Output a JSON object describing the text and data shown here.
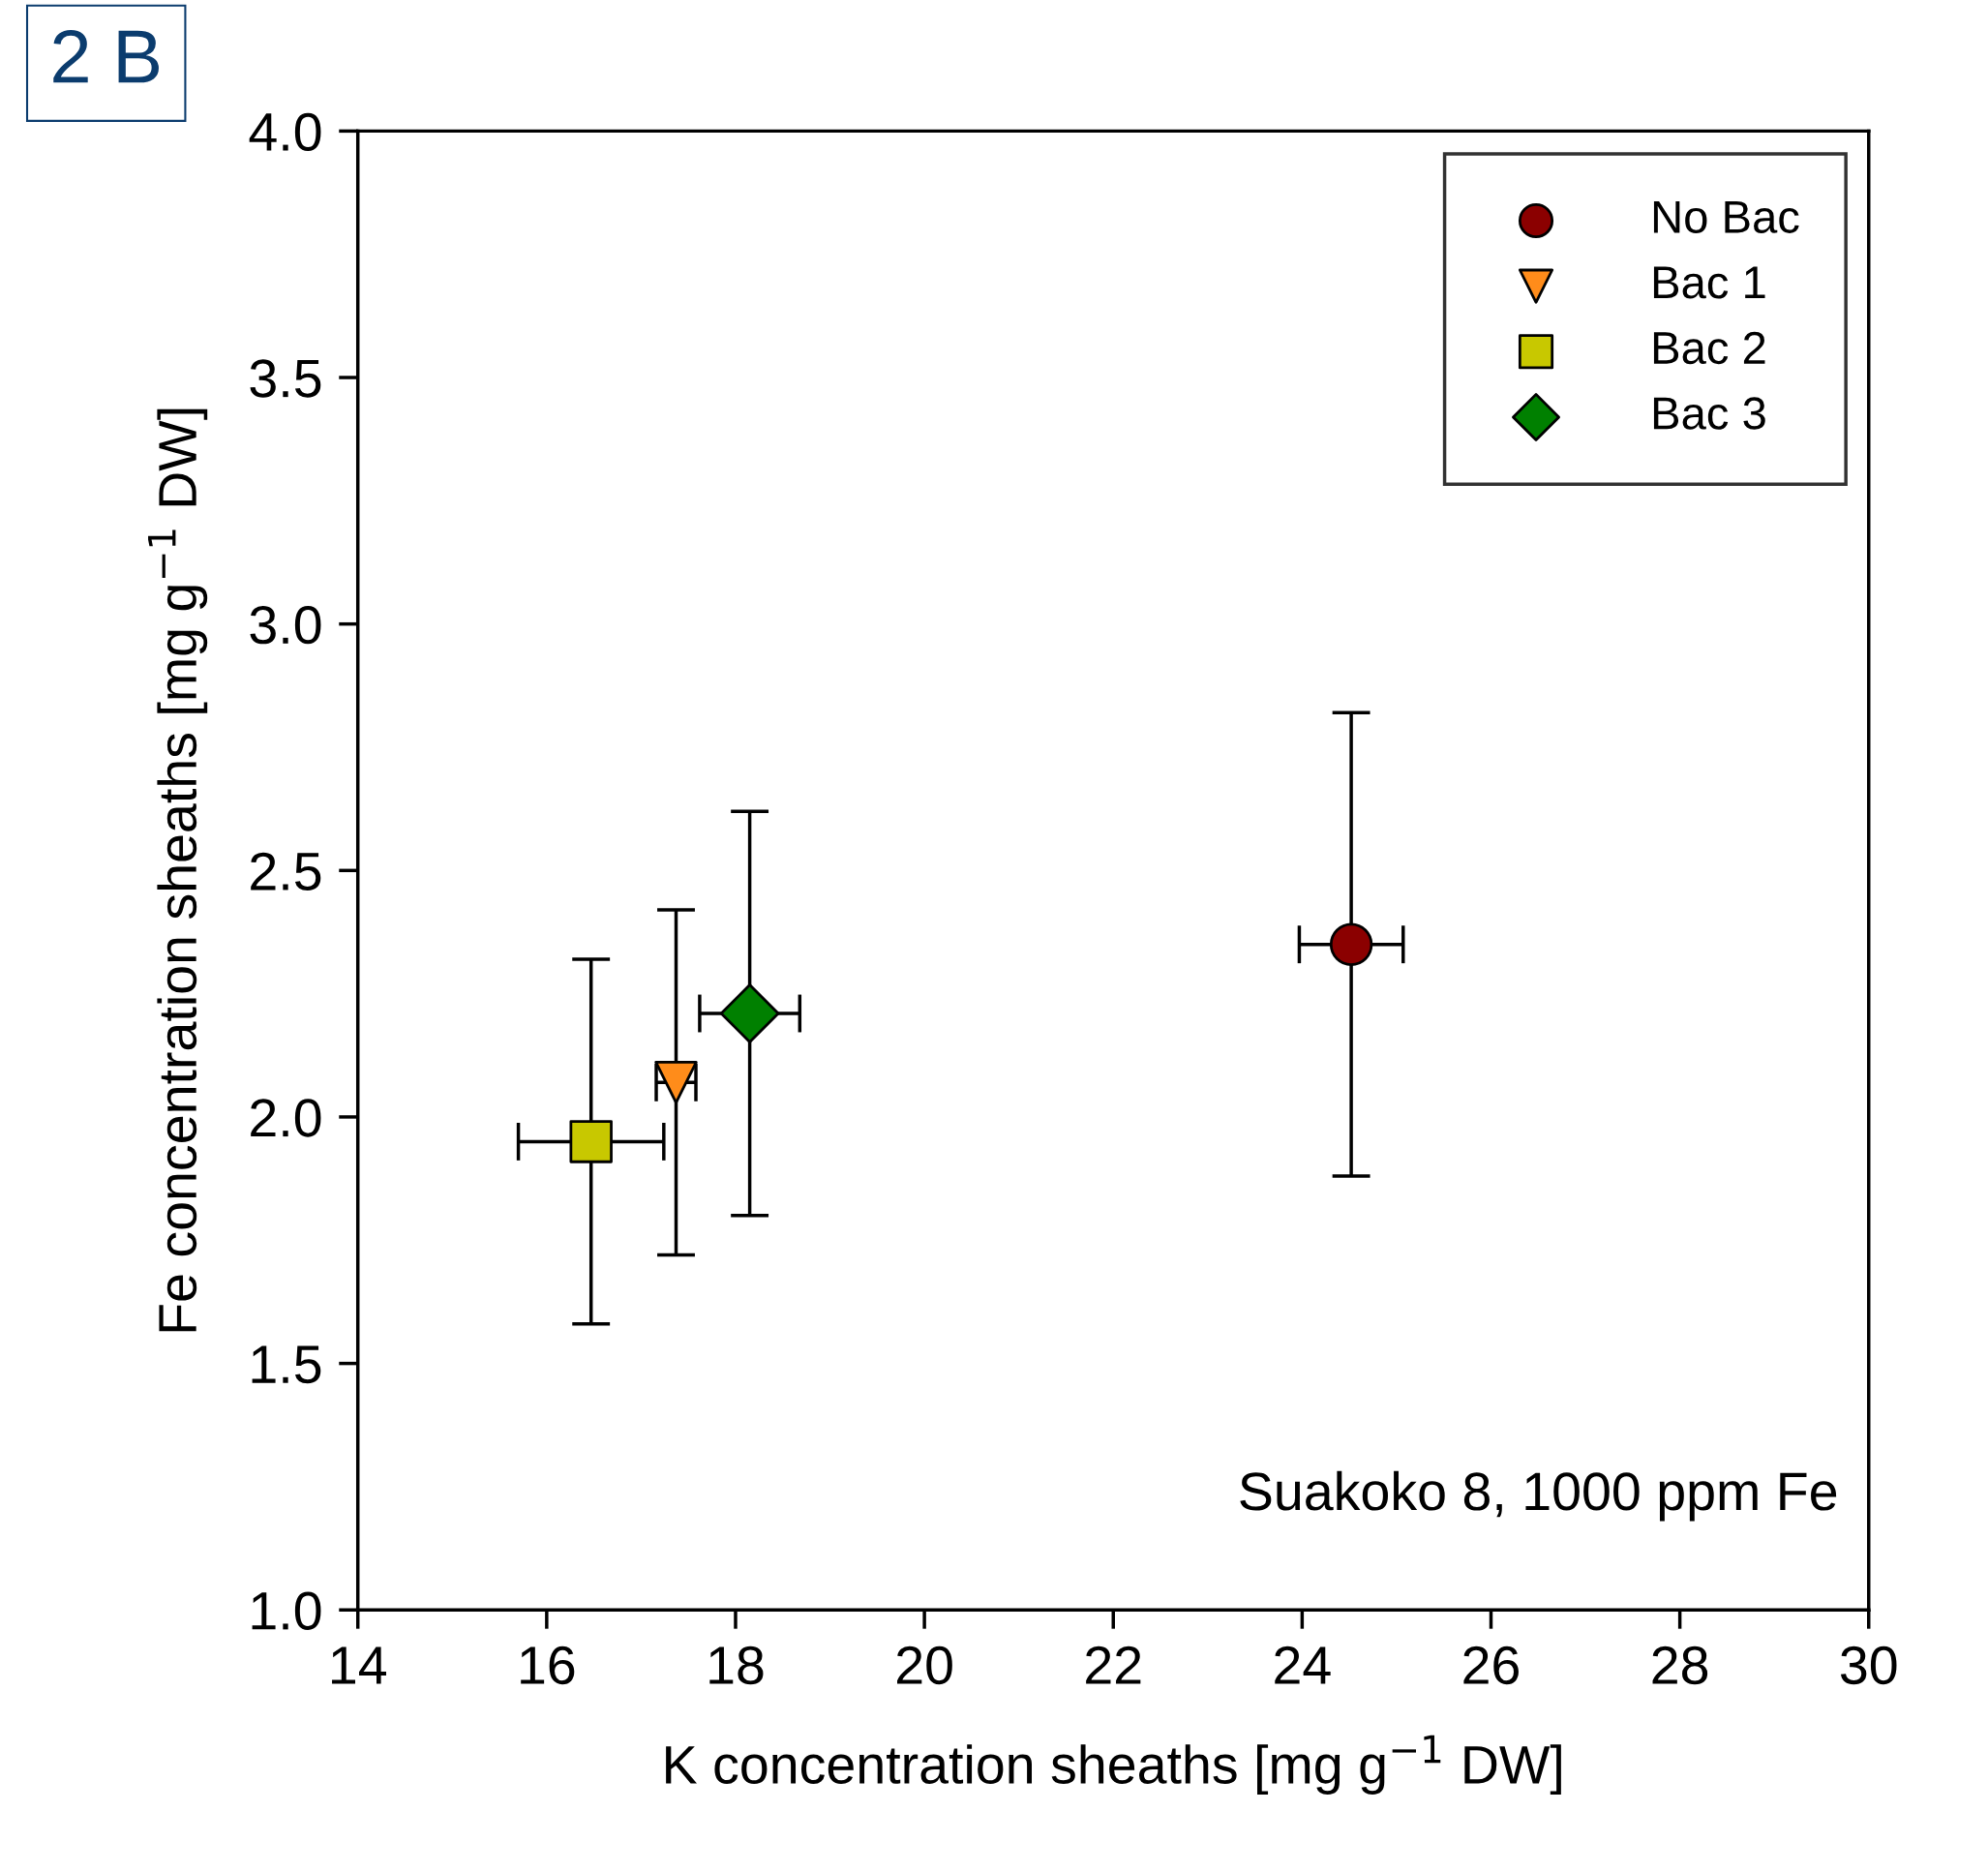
{
  "chart_data": {
    "type": "scatter",
    "xlabel": "K concentration sheaths [mg g$^{−1}$ DW]",
    "ylabel": "Fe concentration sheaths [mg g$^{−1}$ DW]",
    "annotations": [
      "2 B",
      "Suakoko 8, 1000 ppm Fe"
    ],
    "xlim": [
      14,
      30
    ],
    "xticks": [
      14,
      16,
      18,
      20,
      22,
      24,
      26,
      28,
      30
    ],
    "ylim": [
      1.0,
      4.0
    ],
    "yticks": [
      {
        "value": 1.0,
        "label": "1.0"
      },
      {
        "value": 1.5,
        "label": "1.5"
      },
      {
        "value": 2.0,
        "label": "2.0"
      },
      {
        "value": 2.5,
        "label": "2.5"
      },
      {
        "value": 3.0,
        "label": "3.0"
      },
      {
        "value": 3.5,
        "label": "3.5"
      },
      {
        "value": 4.0,
        "label": "4.0"
      }
    ],
    "grid": false,
    "legend": "top right",
    "series": [
      {
        "name": "No Bac",
        "color": "#8b0000",
        "marker": "circle",
        "x": [
          24.52
        ],
        "values": [
          2.35
        ],
        "errors": [
          0.47
        ],
        "xerrors": [
          0.55
        ]
      },
      {
        "name": "Bac 1",
        "color": "#ff8c1a",
        "marker": "triangle",
        "x": [
          17.37
        ],
        "values": [
          2.07
        ],
        "errors": [
          0.35
        ],
        "xerrors": [
          0.21
        ]
      },
      {
        "name": "Bac 2",
        "color": "#c8c800",
        "marker": "square",
        "x": [
          16.47
        ],
        "values": [
          1.95
        ],
        "errors": [
          0.37
        ],
        "xerrors": [
          0.77
        ]
      },
      {
        "name": "Bac 3",
        "color": "#008000",
        "marker": "diamond",
        "x": [
          18.15
        ],
        "values": [
          2.21
        ],
        "errors": [
          0.41
        ],
        "xerrors": [
          0.53
        ]
      }
    ]
  }
}
